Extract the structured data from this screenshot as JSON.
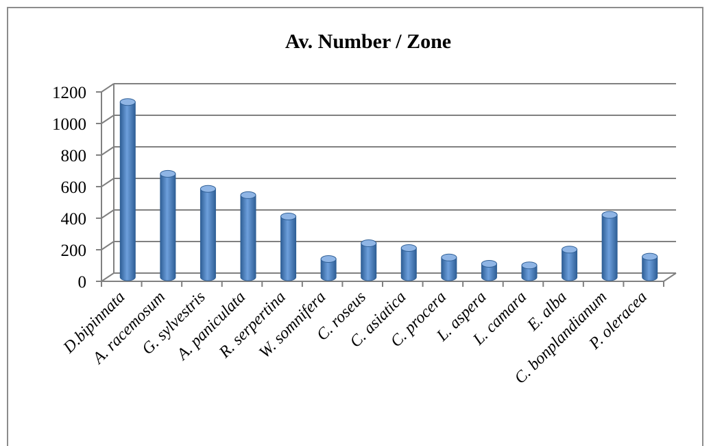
{
  "chart_data": {
    "type": "bar",
    "title": "Av. Number / Zone",
    "xlabel": "",
    "ylabel": "",
    "ylim": [
      0,
      1200
    ],
    "y_ticks": [
      "0",
      "200",
      "400",
      "600",
      "800",
      "1000",
      "1200"
    ],
    "grid": true,
    "legend": "none",
    "categories": [
      "D.bipinnata",
      "A. racemosum",
      "G. sylvestris",
      "A. paniculata",
      "R. serpertina",
      "W. somnifera",
      "C. roseus",
      "C. asiatica",
      "C. procera",
      "L. aspera",
      "L. camara",
      "E. alba",
      "C. bonplandianum",
      "P. oleracea"
    ],
    "values": [
      1110,
      655,
      560,
      520,
      385,
      115,
      215,
      185,
      125,
      85,
      75,
      175,
      395,
      130
    ],
    "colors": {
      "bar": "#4a7ebb",
      "bar_dark": "#2f5f96",
      "bar_light": "#8fb5e5",
      "grid": "#808080"
    }
  }
}
